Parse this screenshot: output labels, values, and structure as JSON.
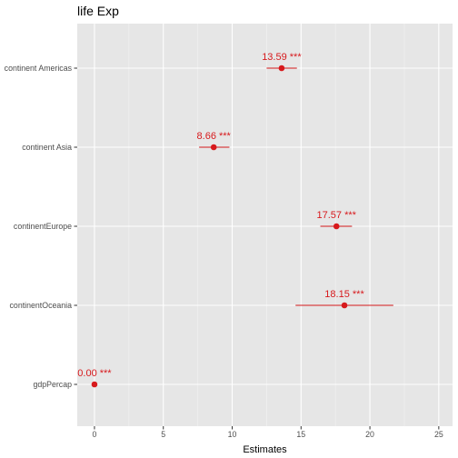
{
  "chart_data": {
    "type": "scatter",
    "title": "life Exp",
    "xlabel": "Estimates",
    "ylabel": "",
    "xlim": [
      -1.25,
      26.0
    ],
    "xticks": [
      0,
      5,
      10,
      15,
      20,
      25
    ],
    "xtick_labels": [
      "0",
      "5",
      "10",
      "15",
      "20",
      "25"
    ],
    "grid": true,
    "point_color": "#d7191c",
    "panel_background": "#e6e6e6",
    "terms": [
      {
        "label": "continent Americas",
        "estimate": 13.59,
        "ci_low": 12.5,
        "ci_high": 14.7,
        "annotation": "13.59 ***"
      },
      {
        "label": "continent Asia",
        "estimate": 8.66,
        "ci_low": 7.6,
        "ci_high": 9.8,
        "annotation": "8.66 ***"
      },
      {
        "label": "continentEurope",
        "estimate": 17.57,
        "ci_low": 16.4,
        "ci_high": 18.7,
        "annotation": "17.57 ***"
      },
      {
        "label": "continentOceania",
        "estimate": 18.15,
        "ci_low": 14.6,
        "ci_high": 21.7,
        "annotation": "18.15 ***"
      },
      {
        "label": "gdpPercap",
        "estimate": 0.0,
        "ci_low": 0.0,
        "ci_high": 0.0,
        "annotation": "0.00 ***"
      }
    ]
  }
}
